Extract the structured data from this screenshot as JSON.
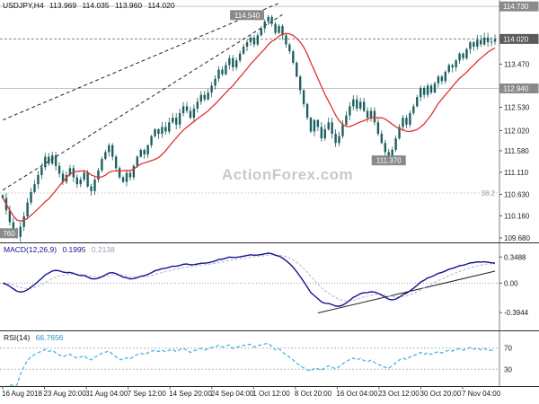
{
  "header": {
    "symbol": "USDJPY,H4",
    "open": "113.969",
    "high": "114.035",
    "low": "113.960",
    "close": "114.020"
  },
  "watermark": "ActionForex.com",
  "colors": {
    "candle": "#1e5f5f",
    "ma": "#e03030",
    "macd": "#14148c",
    "signal": "#b9c0d2",
    "rsi": "#4ab4e6",
    "watermark": "#c9c9c9",
    "label_box": "#8a8a8a",
    "label_box_current": "#5a5a5a",
    "trendline": "#222222",
    "axis_text": "#1a1a1a",
    "level_line": "#c4c4c4"
  },
  "chart_data": [
    {
      "type": "candlestick",
      "title": "USDJPY,H4",
      "x_tick_labels": [
        "16 Aug 2018",
        "23 Aug 20:00",
        "31 Aug 04:00",
        "7 Sep 12:00",
        "14 Sep 20:00",
        "24 Sep 04:00",
        "1 Oct 12:00",
        "8 Oct 20:00",
        "16 Oct 04:00",
        "23 Oct 12:00",
        "30 Oct 20:00",
        "7 Nov 04:00"
      ],
      "ylim": [
        109.6,
        114.85
      ],
      "closes": [
        110.55,
        110.28,
        110.02,
        109.8,
        109.7,
        109.92,
        110.15,
        110.45,
        110.68,
        110.85,
        111.05,
        111.22,
        111.45,
        111.3,
        111.48,
        111.25,
        111.08,
        110.9,
        111.05,
        111.2,
        111.0,
        110.85,
        110.95,
        111.1,
        110.8,
        110.7,
        110.95,
        111.15,
        111.4,
        111.55,
        111.7,
        111.45,
        111.2,
        111.0,
        110.9,
        111.1,
        111.0,
        111.25,
        111.45,
        111.6,
        111.5,
        111.7,
        111.9,
        112.05,
        111.95,
        112.1,
        112.0,
        112.2,
        112.3,
        112.15,
        112.4,
        112.55,
        112.45,
        112.3,
        112.5,
        112.65,
        112.8,
        112.7,
        112.85,
        113.0,
        113.15,
        113.35,
        113.25,
        113.45,
        113.6,
        113.4,
        113.55,
        113.7,
        113.85,
        113.95,
        114.05,
        113.9,
        114.1,
        114.25,
        114.4,
        114.5,
        114.35,
        114.15,
        114.3,
        114.1,
        113.9,
        113.75,
        113.5,
        113.2,
        112.9,
        112.6,
        112.3,
        112.0,
        112.25,
        112.1,
        111.85,
        112.05,
        112.2,
        111.95,
        111.75,
        111.9,
        112.15,
        112.35,
        112.55,
        112.7,
        112.5,
        112.65,
        112.45,
        112.3,
        112.45,
        112.2,
        111.95,
        111.75,
        111.55,
        111.4,
        111.6,
        111.85,
        112.1,
        112.3,
        112.15,
        112.4,
        112.55,
        112.75,
        112.95,
        112.8,
        113.0,
        112.85,
        113.05,
        113.2,
        113.1,
        113.3,
        113.45,
        113.4,
        113.55,
        113.7,
        113.6,
        113.8,
        113.95,
        113.85,
        114.0,
        113.9,
        114.05,
        113.95,
        113.96,
        114.02
      ],
      "ma_period": 13,
      "y_tick_labels": [
        "113.470",
        "112.530",
        "112.020",
        "111.580",
        "111.110",
        "110.630",
        "110.160",
        "109.680"
      ],
      "boxed_price_labels": [
        {
          "text": "114.730",
          "price": 114.73,
          "current": false
        },
        {
          "text": "114.020",
          "price": 114.02,
          "current": true
        },
        {
          "text": "112.940",
          "price": 112.94,
          "current": false
        }
      ],
      "annotations": [
        {
          "text": "114.540",
          "idx": 69,
          "price": 114.54,
          "boxed": true
        },
        {
          "text": "111.370",
          "idx": 109,
          "price": 111.37,
          "boxed": true
        },
        {
          "text": "38.2",
          "idx": 137,
          "price": 110.66,
          "boxed": false
        },
        {
          "text": "760",
          "idx": 0,
          "price": 109.78,
          "boxed": true
        }
      ],
      "trendlines": [
        {
          "i1": 0,
          "p1": 112.25,
          "i2": 78,
          "p2": 114.8
        },
        {
          "i1": 0,
          "p1": 110.72,
          "i2": 79,
          "p2": 114.55
        }
      ]
    },
    {
      "type": "line",
      "name": "MACD",
      "label": "MACD(12,26,9)",
      "values": [
        "0.1995",
        "0.2138"
      ],
      "params": {
        "fast": 12,
        "slow": 26,
        "signal": 9
      },
      "ylim": [
        -0.62,
        0.52
      ],
      "y_ticks": [
        0.3488,
        0,
        -0.3944
      ],
      "y_tick_labels": [
        "0.3488",
        "0.00",
        "-0.3944"
      ],
      "trendline": {
        "i1": 89,
        "v1": -0.4,
        "i2": 139,
        "v2": 0.16
      }
    },
    {
      "type": "line",
      "name": "RSI",
      "label": "RSI(14)",
      "value": "66.7656",
      "period": 14,
      "levels": [
        70,
        30
      ],
      "ylim": [
        0,
        100
      ]
    }
  ]
}
